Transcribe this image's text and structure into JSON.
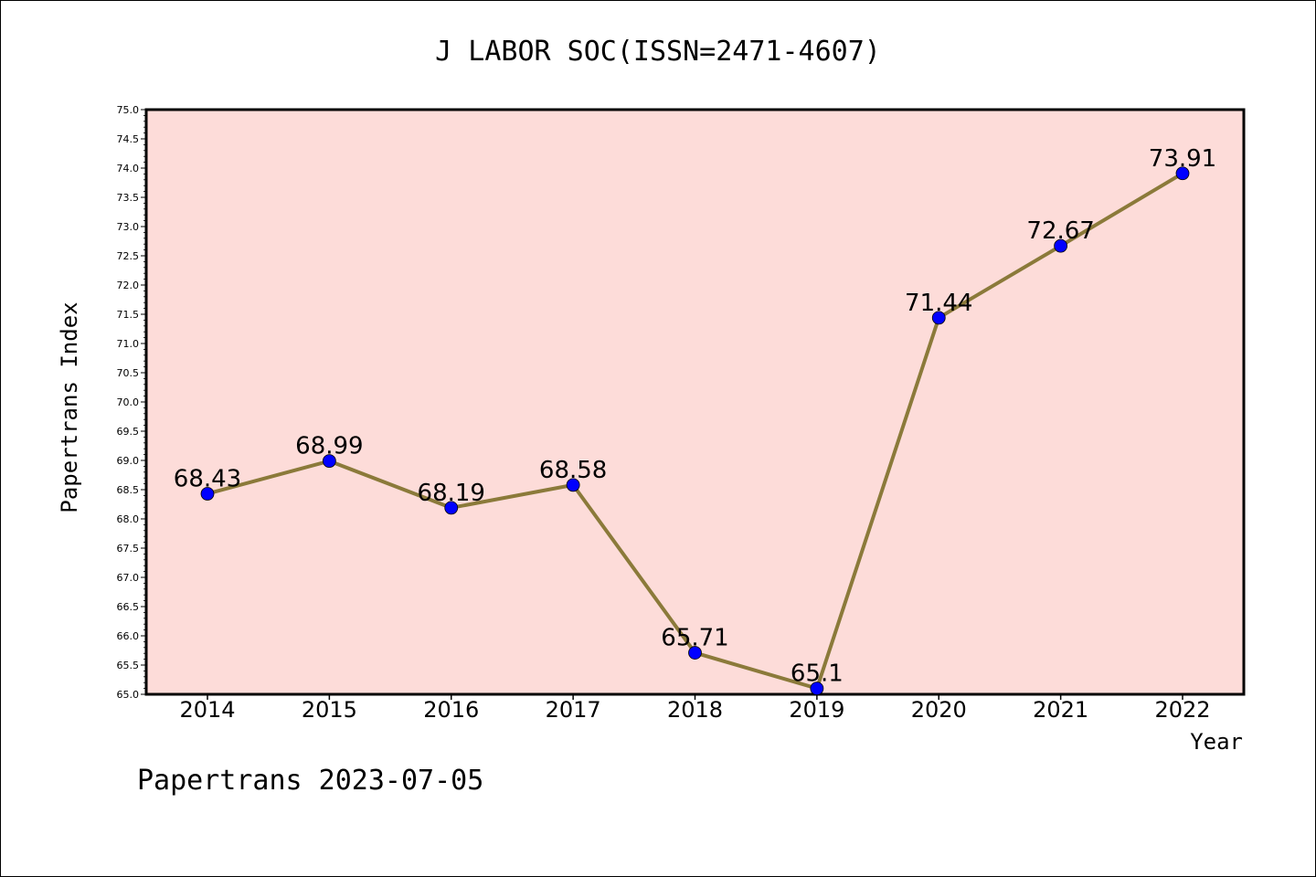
{
  "chart_data": {
    "type": "line",
    "title": "J LABOR SOC(ISSN=2471-4607)",
    "xlabel": "Year",
    "ylabel": "Papertrans Index",
    "x": [
      "2014",
      "2015",
      "2016",
      "2017",
      "2018",
      "2019",
      "2020",
      "2021",
      "2022"
    ],
    "series": [
      {
        "values": [
          68.43,
          68.99,
          68.19,
          68.58,
          65.71,
          65.1,
          71.44,
          72.67,
          73.91
        ]
      }
    ],
    "data_labels": [
      "68.43",
      "68.99",
      "68.19",
      "68.58",
      "65.71",
      "65.1",
      "71.44",
      "72.67",
      "73.91"
    ],
    "ylim": [
      65.0,
      75.0
    ],
    "yticks": [
      "65.0",
      "65.5",
      "66.0",
      "66.5",
      "67.0",
      "67.5",
      "68.0",
      "68.5",
      "69.0",
      "69.5",
      "70.0",
      "70.5",
      "71.0",
      "71.5",
      "72.0",
      "72.5",
      "73.0",
      "73.5",
      "74.0",
      "74.5",
      "75.0"
    ],
    "grid": false,
    "colors": {
      "plot_background": "#fddcd9",
      "line": "#8b7a3a",
      "marker": "#0000ff"
    }
  },
  "footer": "Papertrans 2023-07-05"
}
